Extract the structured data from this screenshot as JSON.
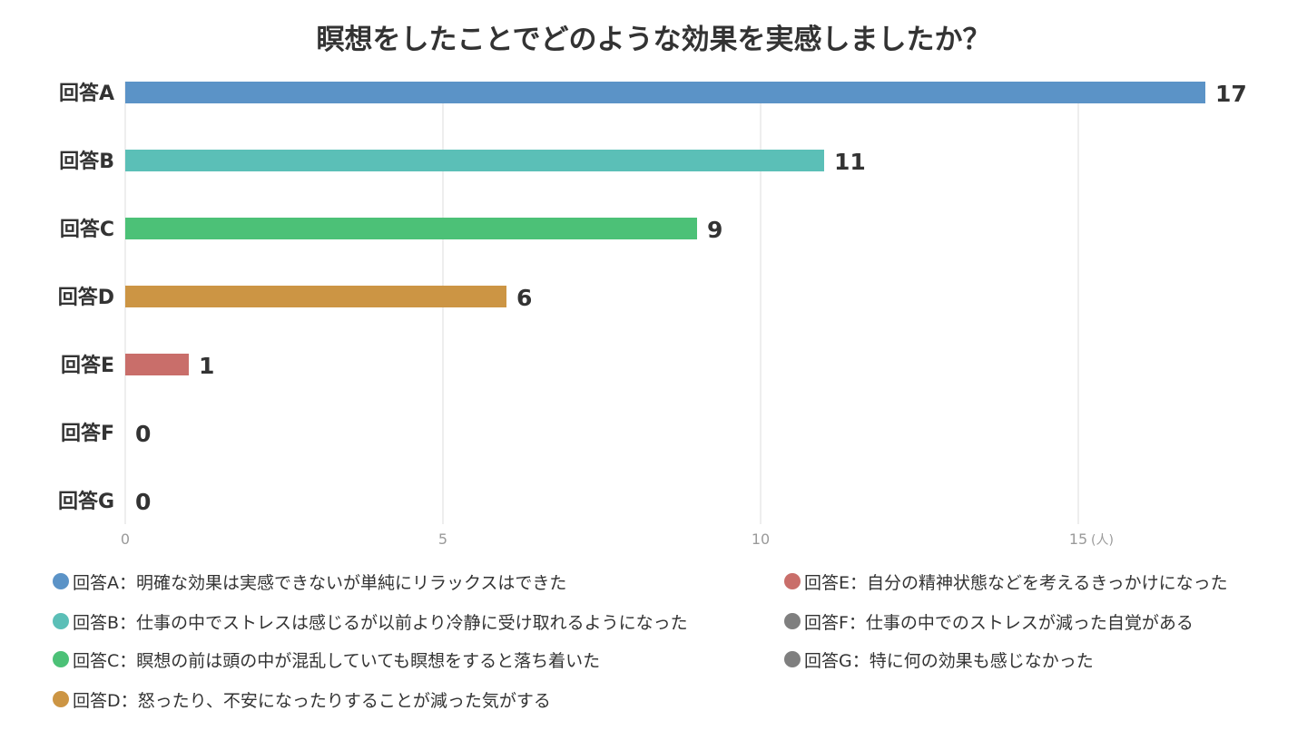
{
  "chart_data": {
    "type": "bar",
    "orientation": "horizontal",
    "title": "瞑想をしたことでどのような効果を実感しましたか？",
    "categories": [
      "回答A",
      "回答B",
      "回答C",
      "回答D",
      "回答E",
      "回答F",
      "回答G"
    ],
    "values": [
      17,
      11,
      9,
      6,
      1,
      0,
      0
    ],
    "colors": [
      "#5b93c7",
      "#5bbfb7",
      "#4cc177",
      "#cc9544",
      "#c96e6a",
      "#7f7f7f",
      "#7f7f7f"
    ],
    "xlim": [
      0,
      17
    ],
    "xticks": [
      "0",
      "5",
      "10",
      "15"
    ],
    "unit": "(人)",
    "grid": true,
    "legend_position": "bottom",
    "legend": [
      {
        "label": "回答A：明確な効果は実感できないが単純にリラックスはできた",
        "color": "#5b93c7"
      },
      {
        "label": "回答B：仕事の中でストレスは感じるが以前より冷静に受け取れるようになった",
        "color": "#5bbfb7"
      },
      {
        "label": "回答C：瞑想の前は頭の中が混乱していても瞑想をすると落ち着いた",
        "color": "#4cc177"
      },
      {
        "label": "回答D：怒ったり、不安になったりすることが減った気がする",
        "color": "#cc9544"
      },
      {
        "label": "回答E：自分の精神状態などを考えるきっかけになった",
        "color": "#c96e6a"
      },
      {
        "label": "回答F：仕事の中でのストレスが減った自覚がある",
        "color": "#7f7f7f"
      },
      {
        "label": "回答G：特に何の効果も感じなかった",
        "color": "#7f7f7f"
      }
    ]
  }
}
